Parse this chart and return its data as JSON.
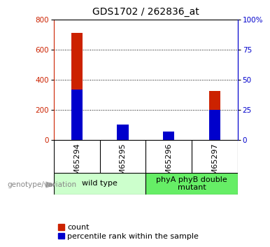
{
  "title": "GDS1702 / 262836_at",
  "samples": [
    "GSM65294",
    "GSM65295",
    "GSM65296",
    "GSM65297"
  ],
  "count_values": [
    710,
    100,
    30,
    325
  ],
  "percentile_values": [
    42,
    13,
    7,
    25
  ],
  "percentile_scale": 8,
  "left_ylim": [
    0,
    800
  ],
  "left_yticks": [
    0,
    200,
    400,
    600,
    800
  ],
  "right_ylim": [
    0,
    100
  ],
  "right_yticks": [
    0,
    25,
    50,
    75,
    100
  ],
  "bar_color": "#cc2200",
  "pct_color": "#0000cc",
  "grid_color": "#000000",
  "sample_bg_color": "#d0d0d0",
  "group_colors": [
    "#ccffcc",
    "#66ee66"
  ],
  "left_axis_color": "#cc2200",
  "right_axis_color": "#0000cc",
  "title_fontsize": 10,
  "tick_fontsize": 7.5,
  "legend_fontsize": 8,
  "group_label_fontsize": 8,
  "sample_label_fontsize": 8,
  "genotype_label": "genotype/variation",
  "groups": [
    {
      "label": "wild type",
      "indices": [
        0,
        1
      ],
      "color": "#ccffcc"
    },
    {
      "label": "phyA phyB double\nmutant",
      "indices": [
        2,
        3
      ],
      "color": "#66ee66"
    }
  ],
  "legend_items": [
    "count",
    "percentile rank within the sample"
  ],
  "bar_width": 0.25
}
